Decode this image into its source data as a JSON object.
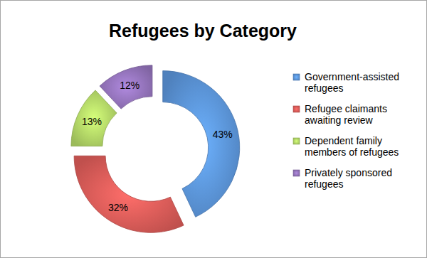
{
  "chart_data": {
    "type": "donut",
    "title": "Refugees by Category",
    "categories": [
      "Government-assisted refugees",
      "Refugee claimants awaiting review",
      "Dependent family members of refugees",
      "Privately sponsored refugees"
    ],
    "values": [
      43,
      32,
      13,
      12
    ],
    "value_labels": [
      "43%",
      "32%",
      "13%",
      "12%"
    ],
    "colors": [
      "#4f81bd",
      "#c0504d",
      "#9bbb59",
      "#8064a2"
    ],
    "data_labels": true,
    "legend": "right"
  }
}
